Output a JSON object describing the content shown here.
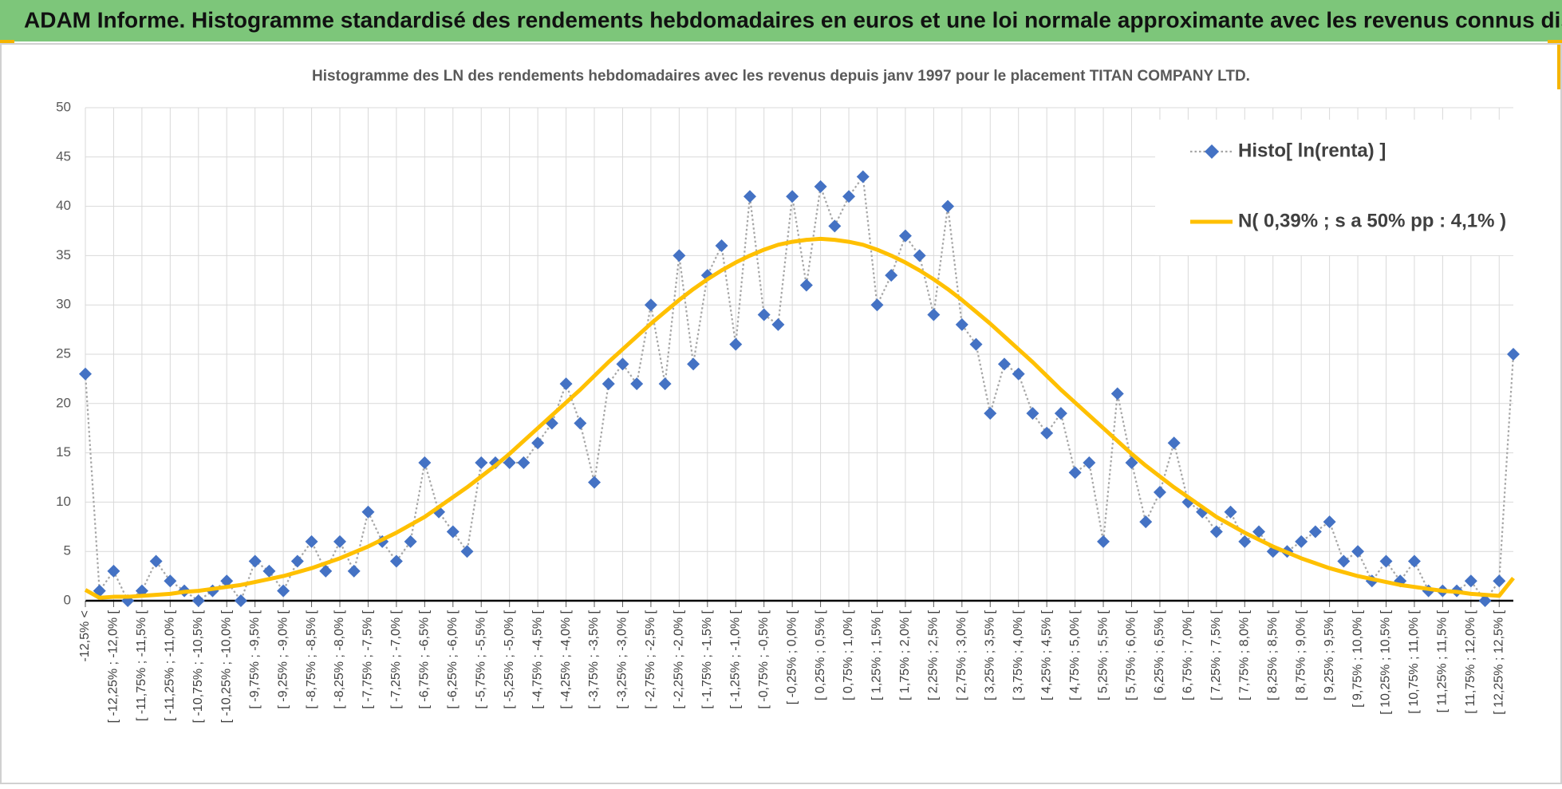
{
  "header": {
    "title": "ADAM Informe. Histogramme standardisé des rendements hebdomadaires en euros et une loi normale approximante avec les revenus connus distribués"
  },
  "chart_data": {
    "type": "line",
    "title": "Histogramme  des LN des rendements hebdomadaires avec les revenus depuis janv 1997 pour le placement TITAN COMPANY LTD.",
    "categories": [
      "-12,5% <",
      null,
      "[ -12,25% ; -12,0% [",
      null,
      "[ -11,75% ; -11,5% [",
      null,
      "[ -11,25% ; -11,0% [",
      null,
      "[ -10,75% ; -10,5% [",
      null,
      "[ -10,25% ; -10,0% [",
      null,
      "[ -9,75% ; -9,5% [",
      null,
      "[ -9,25% ; -9,0% [",
      null,
      "[ -8,75% ; -8,5% [",
      null,
      "[ -8,25% ; -8,0% [",
      null,
      "[ -7,75% ; -7,5% [",
      null,
      "[ -7,25% ; -7,0% [",
      null,
      "[ -6,75% ; -6,5% [",
      null,
      "[ -6,25% ; -6,0% [",
      null,
      "[ -5,75% ; -5,5% [",
      null,
      "[ -5,25% ; -5,0% [",
      null,
      "[ -4,75% ; -4,5% [",
      null,
      "[ -4,25% ; -4,0% [",
      null,
      "[ -3,75% ; -3,5% [",
      null,
      "[ -3,25% ; -3,0% [",
      null,
      "[ -2,75% ; -2,5% [",
      null,
      "[ -2,25% ; -2,0% [",
      null,
      "[ -1,75% ; -1,5% [",
      null,
      "[ -1,25% ; -1,0% [",
      null,
      "[ -0,75% ; -0,5% [",
      null,
      "[ -0,25% ; 0,0% [",
      null,
      "[ 0,25% ; 0,5% [",
      null,
      "[ 0,75% ; 1,0% [",
      null,
      "[ 1,25% ; 1,5% [",
      null,
      "[ 1,75% ; 2,0% [",
      null,
      "[ 2,25% ; 2,5% [",
      null,
      "[ 2,75% ; 3,0% [",
      null,
      "[ 3,25% ; 3,5% [",
      null,
      "[ 3,75% ; 4,0% [",
      null,
      "[ 4,25% ; 4,5% [",
      null,
      "[ 4,75% ; 5,0% [",
      null,
      "[ 5,25% ; 5,5% [",
      null,
      "[ 5,75% ; 6,0% [",
      null,
      "[ 6,25% ; 6,5% [",
      null,
      "[ 6,75% ; 7,0% [",
      null,
      "[ 7,25% ; 7,5% [",
      null,
      "[ 7,75% ; 8,0% [",
      null,
      "[ 8,25% ; 8,5% [",
      null,
      "[ 8,75% ; 9,0% [",
      null,
      "[ 9,25% ; 9,5% [",
      null,
      "[ 9,75% ; 10,0% [",
      null,
      "[ 10,25% ; 10,5% [",
      null,
      "[ 10,75% ; 11,0% [",
      null,
      "[ 11,25% ; 11,5% [",
      null,
      "[ 11,75% ; 12,0% [",
      null,
      "[ 12,25% ; 12,5% [",
      null
    ],
    "series": [
      {
        "name": "Histo[ ln(renta) ]",
        "color": "#4472c4",
        "line_color": "#a6a6a6",
        "marker": "diamond",
        "linestyle": "dotted",
        "values": [
          23,
          1,
          3,
          0,
          1,
          4,
          2,
          1,
          0,
          1,
          2,
          0,
          4,
          3,
          1,
          4,
          6,
          3,
          6,
          3,
          9,
          6,
          4,
          6,
          14,
          9,
          7,
          5,
          14,
          14,
          14,
          14,
          16,
          18,
          22,
          18,
          12,
          22,
          24,
          22,
          30,
          22,
          35,
          24,
          33,
          36,
          26,
          41,
          29,
          28,
          41,
          32,
          42,
          38,
          41,
          43,
          30,
          33,
          37,
          35,
          29,
          40,
          28,
          26,
          19,
          24,
          23,
          19,
          17,
          19,
          13,
          14,
          6,
          21,
          14,
          8,
          11,
          16,
          10,
          9,
          7,
          9,
          6,
          7,
          5,
          5,
          6,
          7,
          8,
          4,
          5,
          2,
          4,
          2,
          4,
          1,
          1,
          1,
          2,
          0,
          2,
          25
        ]
      },
      {
        "name": "N( 0,39% ; s a 50% pp : 4,1% )",
        "color": "#ffc000",
        "linestyle": "solid",
        "values": [
          1.1,
          0.3,
          0.4,
          0.4,
          0.5,
          0.6,
          0.7,
          0.9,
          1.0,
          1.2,
          1.4,
          1.6,
          1.9,
          2.2,
          2.5,
          2.9,
          3.3,
          3.8,
          4.3,
          4.9,
          5.5,
          6.2,
          6.9,
          7.7,
          8.5,
          9.5,
          10.5,
          11.5,
          12.6,
          13.7,
          14.9,
          16.2,
          17.5,
          18.8,
          20.1,
          21.4,
          22.8,
          24.2,
          25.5,
          26.8,
          28.1,
          29.3,
          30.5,
          31.6,
          32.6,
          33.5,
          34.3,
          35.0,
          35.6,
          36.1,
          36.4,
          36.6,
          36.7,
          36.6,
          36.4,
          36.1,
          35.6,
          35.0,
          34.3,
          33.5,
          32.6,
          31.6,
          30.5,
          29.3,
          28.1,
          26.8,
          25.5,
          24.2,
          22.8,
          21.4,
          20.1,
          18.8,
          17.5,
          16.2,
          14.9,
          13.7,
          12.6,
          11.5,
          10.5,
          9.5,
          8.5,
          7.7,
          6.9,
          6.2,
          5.5,
          4.9,
          4.3,
          3.8,
          3.3,
          2.9,
          2.5,
          2.2,
          1.9,
          1.6,
          1.4,
          1.2,
          1.0,
          0.9,
          0.7,
          0.6,
          0.5,
          2.3
        ]
      }
    ],
    "ylim": [
      0,
      50
    ],
    "yticks": [
      0,
      5,
      10,
      15,
      20,
      25,
      30,
      35,
      40,
      45,
      50
    ],
    "grid": true,
    "legend": "upper right"
  }
}
